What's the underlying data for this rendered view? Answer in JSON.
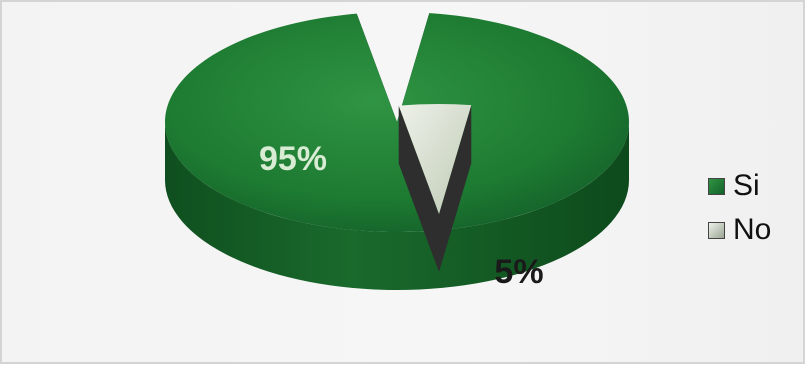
{
  "chart_data": {
    "type": "pie",
    "title": "",
    "categories": [
      "Si",
      "No"
    ],
    "values": [
      95,
      5
    ],
    "value_labels": [
      "95%",
      "5%"
    ],
    "style": "3d-exploded",
    "legend_position": "right",
    "colors": {
      "Si": "#1e7a32",
      "No": "#d3dccb"
    }
  }
}
